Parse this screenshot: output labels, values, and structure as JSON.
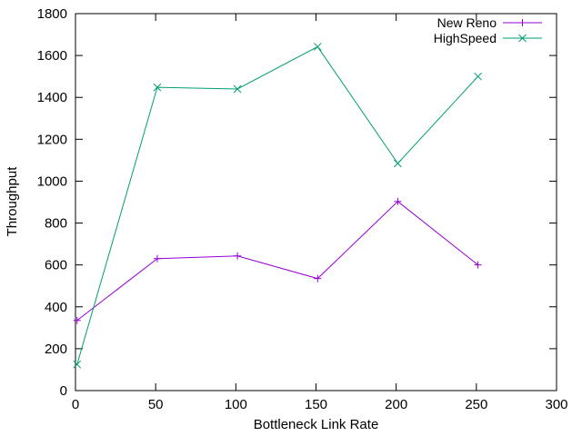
{
  "chart_data": {
    "type": "line",
    "xlabel": "Bottleneck Link Rate",
    "ylabel": "Throughput",
    "xlim": [
      0,
      300
    ],
    "ylim": [
      0,
      1800
    ],
    "xticks": [
      0,
      50,
      100,
      150,
      200,
      250,
      300
    ],
    "yticks": [
      0,
      200,
      400,
      600,
      800,
      1000,
      1200,
      1400,
      1600,
      1800
    ],
    "grid": false,
    "legend": "top-right",
    "series": [
      {
        "name": "New Reno",
        "color": "#9400d3",
        "marker": "plus",
        "x": [
          1,
          51,
          101,
          151,
          201,
          251
        ],
        "y": [
          335,
          630,
          643,
          535,
          903,
          600
        ]
      },
      {
        "name": "HighSpeed",
        "color": "#009e73",
        "marker": "cross",
        "x": [
          1,
          51,
          101,
          151,
          201,
          251
        ],
        "y": [
          125,
          1448,
          1440,
          1642,
          1085,
          1500
        ]
      }
    ]
  }
}
